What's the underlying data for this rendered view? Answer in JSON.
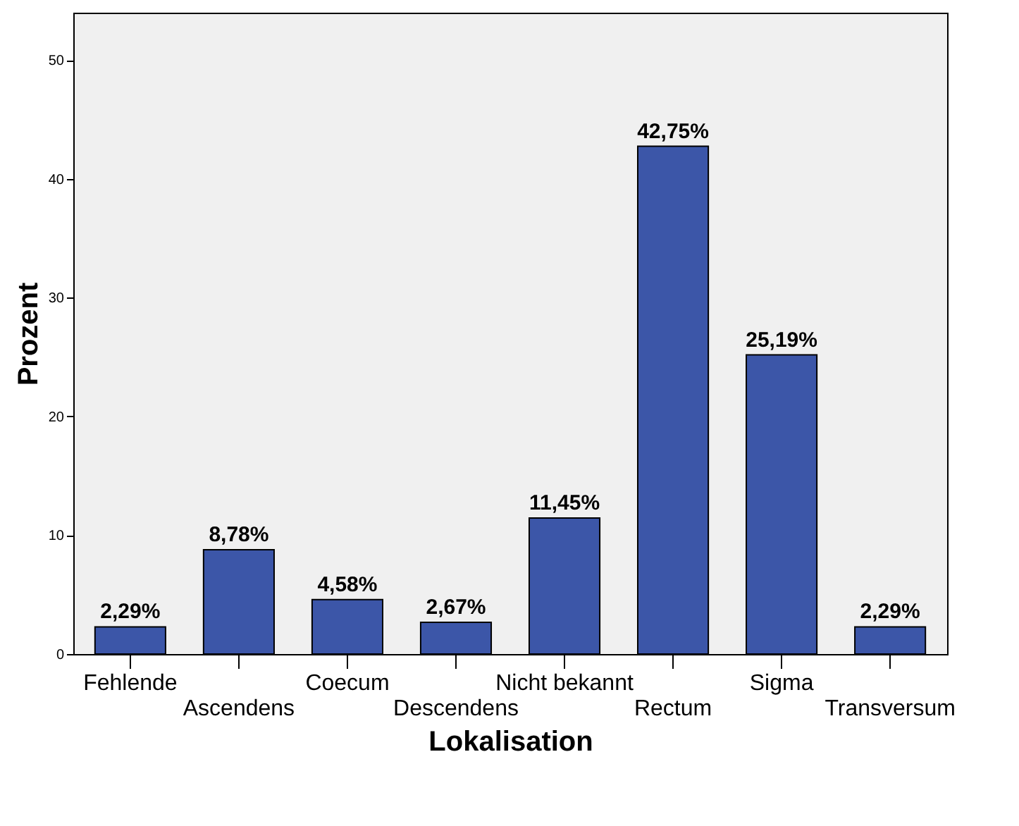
{
  "chart_data": {
    "type": "bar",
    "xlabel": "Lokalisation",
    "ylabel": "Prozent",
    "categories": [
      "Fehlende",
      "Ascendens",
      "Coecum",
      "Descendens",
      "Nicht bekannt",
      "Rectum",
      "Sigma",
      "Transversum"
    ],
    "values": [
      2.29,
      8.78,
      4.58,
      2.67,
      11.45,
      42.75,
      25.19,
      2.29
    ],
    "value_labels": [
      "2,29%",
      "8,78%",
      "4,58%",
      "2,67%",
      "11,45%",
      "42,75%",
      "25,19%",
      "2,29%"
    ],
    "color": "#3c56a8",
    "ylim": [
      0,
      54
    ],
    "yticks": [
      0,
      10,
      20,
      30,
      40,
      50
    ],
    "grid": false
  }
}
